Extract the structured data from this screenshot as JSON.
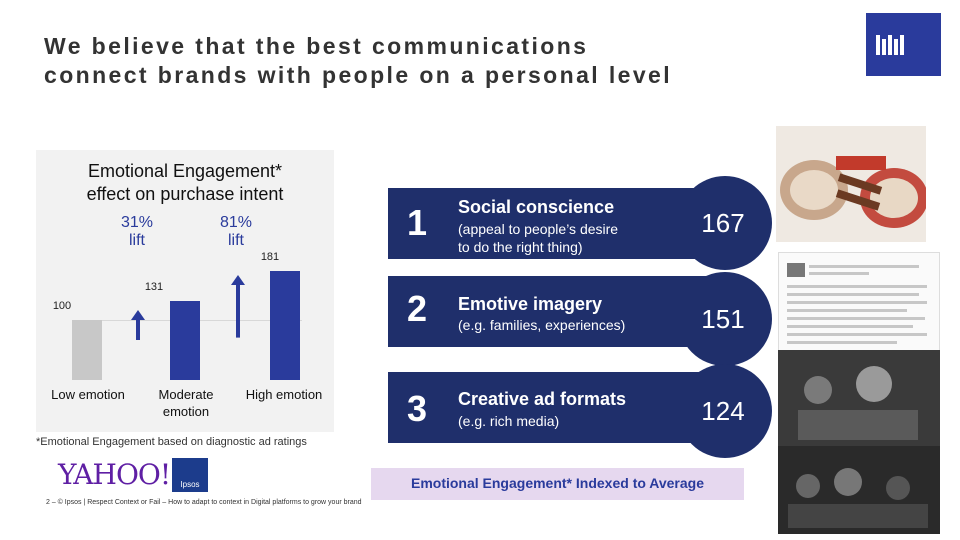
{
  "title": {
    "line1": "We believe that the best communications",
    "line2": "connect brands with people on a personal level"
  },
  "chart_data": {
    "type": "bar",
    "title": "Emotional Engagement* effect on purchase intent",
    "title_line1": "Emotional Engagement*",
    "title_line2": "effect on purchase intent",
    "categories": [
      "Low emotion",
      "Moderate emotion",
      "High emotion"
    ],
    "values": [
      100,
      131,
      181
    ],
    "lift_labels": [
      "31%\nlift",
      "81%\nlift"
    ],
    "lift_1": {
      "pct": "31%",
      "word": "lift"
    },
    "lift_2": {
      "pct": "81%",
      "word": "lift"
    },
    "ylim": [
      0,
      200
    ],
    "colors": [
      "#c8c8c8",
      "#2a3b9c",
      "#2a3b9c"
    ],
    "footnote": "*Emotional Engagement based on diagnostic ad ratings"
  },
  "rankings": [
    {
      "rank": "1",
      "heading": "Social conscience",
      "sub1": "(appeal to people’s desire",
      "sub2": "to do the right thing)",
      "score": "167"
    },
    {
      "rank": "2",
      "heading": "Emotive imagery",
      "sub1": "(e.g. families, experiences)",
      "sub2": "",
      "score": "151"
    },
    {
      "rank": "3",
      "heading": "Creative ad formats",
      "sub1": "(e.g. rich media)",
      "sub2": "",
      "score": "124"
    }
  ],
  "legend": "Emotional Engagement* Indexed to Average",
  "logos": {
    "yahoo": "YAHOO!",
    "ipsos": "Ipsos"
  },
  "footer": "2 – © Ipsos | Respect Context or Fail – How to adapt to context in Digital platforms to grow your brand",
  "colors": {
    "accent": "#2a3b9c",
    "navy": "#1f2f6b",
    "legend_bg": "#e6d8ef",
    "yahoo": "#5f1fa4"
  },
  "icons": [
    "library-books-icon"
  ]
}
